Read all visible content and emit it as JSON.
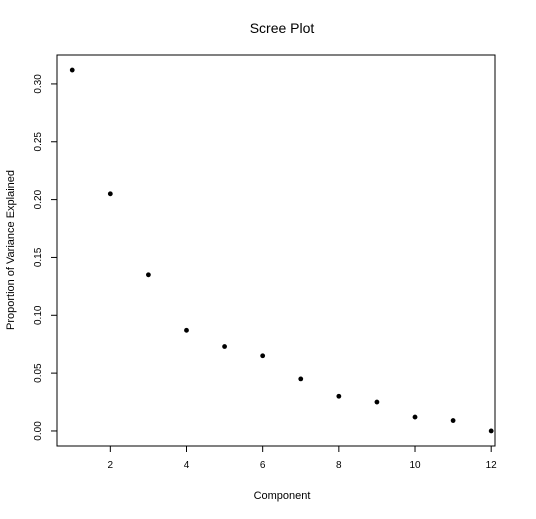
{
  "chart_data": {
    "type": "scatter",
    "title": "Scree Plot",
    "xlabel": "Component",
    "ylabel": "Proportion of Variance Explained",
    "xlim": [
      0.6,
      12.1
    ],
    "ylim": [
      -0.013,
      0.325
    ],
    "x_ticks": [
      2,
      4,
      6,
      8,
      10,
      12
    ],
    "y_ticks": [
      0.0,
      0.05,
      0.1,
      0.15,
      0.2,
      0.25,
      0.3
    ],
    "x_tick_labels": [
      "2",
      "4",
      "6",
      "8",
      "10",
      "12"
    ],
    "y_tick_labels": [
      "0.00",
      "0.05",
      "0.10",
      "0.15",
      "0.20",
      "0.25",
      "0.30"
    ],
    "grid": false,
    "points": [
      {
        "x": 1,
        "y": 0.312
      },
      {
        "x": 2,
        "y": 0.205
      },
      {
        "x": 3,
        "y": 0.135
      },
      {
        "x": 4,
        "y": 0.087
      },
      {
        "x": 5,
        "y": 0.073
      },
      {
        "x": 6,
        "y": 0.065
      },
      {
        "x": 7,
        "y": 0.045
      },
      {
        "x": 8,
        "y": 0.03
      },
      {
        "x": 9,
        "y": 0.025
      },
      {
        "x": 10,
        "y": 0.012
      },
      {
        "x": 11,
        "y": 0.009
      },
      {
        "x": 12,
        "y": 0.0
      }
    ],
    "point_color": "#000000"
  }
}
